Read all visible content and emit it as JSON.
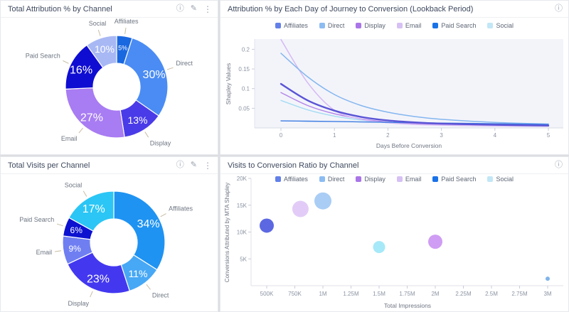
{
  "panels": [
    {
      "id": "total-attribution",
      "title": "Total Attribution % by Channel",
      "icons": [
        "info",
        "edit",
        "menu"
      ]
    },
    {
      "id": "attribution-by-day",
      "title": "Attribution % by Each Day of Journey to Conversion (Lookback Period)",
      "icons": [
        "info"
      ]
    },
    {
      "id": "total-visits",
      "title": "Total Visits per Channel",
      "icons": [
        "info",
        "edit",
        "menu"
      ]
    },
    {
      "id": "visits-to-conversion",
      "title": "Visits to Conversion Ratio by Channel",
      "icons": [
        "info"
      ]
    }
  ],
  "channel_legend": [
    {
      "label": "Affiliates",
      "color": "#6380e8"
    },
    {
      "label": "Direct",
      "color": "#8cbcf2"
    },
    {
      "label": "Display",
      "color": "#aa75e8"
    },
    {
      "label": "Email",
      "color": "#d6c0f4"
    },
    {
      "label": "Paid Search",
      "color": "#1a72e8"
    },
    {
      "label": "Social",
      "color": "#c2e7f6"
    }
  ],
  "chart_data": [
    {
      "type": "pie",
      "donut": true,
      "title": "Total Attribution % by Channel",
      "segments": [
        {
          "label": "Affiliates",
          "value": 5,
          "display": "5%",
          "color": "#1a68e0"
        },
        {
          "label": "Direct",
          "value": 30,
          "display": "30%",
          "color": "#4a8cf4"
        },
        {
          "label": "Display",
          "value": 13,
          "display": "13%",
          "color": "#4a3be8"
        },
        {
          "label": "Email",
          "value": 27,
          "display": "27%",
          "color": "#a87cf2"
        },
        {
          "label": "Paid Search",
          "value": 16,
          "display": "16%",
          "color": "#0f0dd2"
        },
        {
          "label": "Social",
          "value": 10,
          "display": "10%",
          "color": "#a8b8f4"
        }
      ]
    },
    {
      "type": "line",
      "title": "Attribution % by Each Day of Journey to Conversion (Lookback Period)",
      "xlabel": "Days Before Conversion",
      "ylabel": "Shapley Values",
      "xticks": [
        0,
        1,
        2,
        3,
        4,
        5
      ],
      "yticks": [
        0.05,
        0.1,
        0.15,
        0.2
      ],
      "xlim": [
        0,
        5
      ],
      "ylim": [
        0,
        0.23
      ],
      "grid": false,
      "legend_position": "top",
      "x": [
        0,
        0.5,
        1,
        1.5,
        2,
        2.5,
        3,
        4,
        5
      ],
      "series": [
        {
          "name": "Social",
          "color": "#a5dcf3",
          "width": 1.4,
          "values": [
            0.07,
            0.046,
            0.03,
            0.02,
            0.013,
            0.01,
            0.008,
            0.006,
            0.004
          ]
        },
        {
          "name": "Display",
          "color": "#b183ea",
          "width": 1.4,
          "values": [
            0.09,
            0.057,
            0.036,
            0.023,
            0.015,
            0.011,
            0.009,
            0.006,
            0.005
          ]
        },
        {
          "name": "Email",
          "color": "#d5b9f4",
          "width": 1.5,
          "values": [
            0.225,
            0.115,
            0.045,
            0.022,
            0.013,
            0.009,
            0.007,
            0.005,
            0.004
          ]
        },
        {
          "name": "Direct",
          "color": "#84b6ef",
          "width": 1.5,
          "values": [
            0.19,
            0.13,
            0.085,
            0.057,
            0.04,
            0.029,
            0.022,
            0.014,
            0.01
          ]
        },
        {
          "name": "Paid Search",
          "color": "#3c7ce2",
          "width": 1.4,
          "values": [
            0.018,
            0.0172,
            0.0163,
            0.0153,
            0.0143,
            0.0133,
            0.0124,
            0.0108,
            0.009
          ]
        },
        {
          "name": "Affiliates",
          "color": "#5a54d6",
          "width": 2.4,
          "values": [
            0.112,
            0.07,
            0.044,
            0.028,
            0.019,
            0.014,
            0.011,
            0.008,
            0.006
          ]
        }
      ]
    },
    {
      "type": "pie",
      "donut": true,
      "title": "Total Visits per Channel",
      "segments": [
        {
          "label": "Affiliates",
          "value": 34,
          "display": "34%",
          "color": "#1f93f2"
        },
        {
          "label": "Direct",
          "value": 11,
          "display": "11%",
          "color": "#47a8f5"
        },
        {
          "label": "Display",
          "value": 23,
          "display": "23%",
          "color": "#4338f0"
        },
        {
          "label": "Email",
          "value": 9,
          "display": "9%",
          "color": "#6f7ff2"
        },
        {
          "label": "Paid Search",
          "value": 6,
          "display": "6%",
          "color": "#0c12cf"
        },
        {
          "label": "Social",
          "value": 17,
          "display": "17%",
          "color": "#2bc6f5"
        }
      ]
    },
    {
      "type": "scatter",
      "title": "Visits to Conversion Ratio by Channel",
      "xlabel": "Total Impressions",
      "ylabel": "Conversions Attributed by MTA Shapley",
      "xlim": [
        500000,
        3000000
      ],
      "ylim": [
        0,
        20000
      ],
      "grid": false,
      "legend_position": "top",
      "xticks": [
        {
          "v": 500000,
          "l": "500K"
        },
        {
          "v": 750000,
          "l": "750K"
        },
        {
          "v": 1000000,
          "l": "1M"
        },
        {
          "v": 1250000,
          "l": "1.25M"
        },
        {
          "v": 1500000,
          "l": "1.5M"
        },
        {
          "v": 1750000,
          "l": "1.75M"
        },
        {
          "v": 2000000,
          "l": "2M"
        },
        {
          "v": 2250000,
          "l": "2.25M"
        },
        {
          "v": 2500000,
          "l": "2.5M"
        },
        {
          "v": 2750000,
          "l": "2.75M"
        },
        {
          "v": 3000000,
          "l": "3M"
        }
      ],
      "yticks": [
        {
          "v": 5000,
          "l": "5K"
        },
        {
          "v": 10000,
          "l": "10K"
        },
        {
          "v": 15000,
          "l": "15K"
        },
        {
          "v": 20000,
          "l": "20K"
        }
      ],
      "points": [
        {
          "label": "Affiliates",
          "x": 500000,
          "y": 11200,
          "r": 10,
          "color": "#5c68e2"
        },
        {
          "label": "Email",
          "x": 800000,
          "y": 14300,
          "r": 11.5,
          "color": "#e2ccf7"
        },
        {
          "label": "Direct",
          "x": 1000000,
          "y": 15800,
          "r": 12,
          "color": "#a9cdf5"
        },
        {
          "label": "Social",
          "x": 1500000,
          "y": 7200,
          "r": 8.5,
          "color": "#a6e9f8"
        },
        {
          "label": "Display",
          "x": 2000000,
          "y": 8200,
          "r": 10,
          "color": "#cf9df3"
        },
        {
          "label": "Paid Search",
          "x": 3000000,
          "y": 1300,
          "r": 3,
          "color": "#80b4ea"
        }
      ]
    }
  ]
}
